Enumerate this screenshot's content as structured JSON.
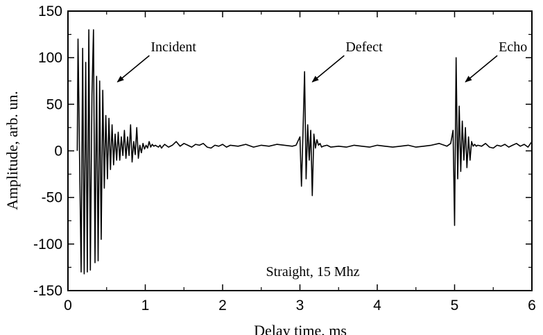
{
  "chart_data": {
    "type": "line",
    "title": "",
    "xlabel": "Delay time, ms",
    "ylabel": "Amplitude, arb. un.",
    "xlim": [
      0,
      6
    ],
    "ylim": [
      -150,
      150
    ],
    "xticks": [
      0,
      1,
      2,
      3,
      4,
      5,
      6
    ],
    "yticks": [
      150,
      100,
      50,
      0,
      -50,
      -100,
      -150
    ],
    "grid": false,
    "legend": "none",
    "inset_text": "Straight, 15 Mhz",
    "annotations": [
      {
        "text": "Incident",
        "target": [
          0.64,
          74
        ]
      },
      {
        "text": "Defect",
        "target": [
          3.16,
          74
        ]
      },
      {
        "text": "Echo",
        "target": [
          5.14,
          74
        ]
      }
    ],
    "series": [
      {
        "color": "#000000",
        "x": [
          0.12,
          0.13,
          0.15,
          0.17,
          0.19,
          0.21,
          0.23,
          0.25,
          0.27,
          0.29,
          0.31,
          0.33,
          0.35,
          0.37,
          0.39,
          0.41,
          0.43,
          0.45,
          0.47,
          0.49,
          0.51,
          0.53,
          0.55,
          0.57,
          0.59,
          0.61,
          0.63,
          0.65,
          0.67,
          0.69,
          0.71,
          0.73,
          0.75,
          0.77,
          0.79,
          0.81,
          0.83,
          0.85,
          0.87,
          0.89,
          0.91,
          0.93,
          0.95,
          0.97,
          0.99,
          1.01,
          1.03,
          1.05,
          1.07,
          1.09,
          1.11,
          1.13,
          1.15,
          1.17,
          1.19,
          1.21,
          1.23,
          1.25,
          1.3,
          1.35,
          1.4,
          1.45,
          1.5,
          1.55,
          1.6,
          1.65,
          1.7,
          1.75,
          1.8,
          1.85,
          1.9,
          1.95,
          2.0,
          2.05,
          2.1,
          2.2,
          2.3,
          2.4,
          2.5,
          2.6,
          2.7,
          2.8,
          2.9,
          2.95,
          3.0,
          3.02,
          3.04,
          3.06,
          3.08,
          3.1,
          3.12,
          3.14,
          3.16,
          3.18,
          3.2,
          3.22,
          3.24,
          3.26,
          3.28,
          3.3,
          3.35,
          3.4,
          3.5,
          3.6,
          3.7,
          3.8,
          3.9,
          4.0,
          4.1,
          4.2,
          4.3,
          4.4,
          4.5,
          4.6,
          4.7,
          4.8,
          4.9,
          4.95,
          4.98,
          5.0,
          5.02,
          5.04,
          5.06,
          5.08,
          5.1,
          5.12,
          5.14,
          5.16,
          5.18,
          5.2,
          5.22,
          5.24,
          5.26,
          5.28,
          5.3,
          5.35,
          5.4,
          5.45,
          5.5,
          5.55,
          5.6,
          5.65,
          5.7,
          5.75,
          5.8,
          5.85,
          5.9,
          5.95,
          6.0
        ],
        "y": [
          0,
          120,
          -5,
          -130,
          110,
          -132,
          95,
          -130,
          130,
          -128,
          60,
          130,
          -120,
          80,
          -118,
          75,
          -95,
          65,
          -40,
          38,
          -30,
          35,
          -20,
          28,
          -15,
          18,
          -10,
          20,
          -10,
          15,
          -5,
          22,
          -8,
          15,
          -5,
          28,
          -12,
          10,
          -4,
          25,
          -8,
          6,
          -2,
          8,
          2,
          6,
          3,
          10,
          4,
          7,
          5,
          6,
          5,
          4,
          6,
          3,
          5,
          7,
          4,
          6,
          10,
          5,
          8,
          6,
          4,
          7,
          6,
          8,
          4,
          3,
          6,
          5,
          7,
          4,
          6,
          5,
          7,
          4,
          6,
          5,
          7,
          6,
          5,
          6,
          15,
          -38,
          22,
          85,
          -30,
          28,
          -10,
          22,
          -48,
          18,
          3,
          12,
          6,
          8,
          4,
          5,
          6,
          4,
          5,
          4,
          6,
          5,
          4,
          6,
          5,
          4,
          5,
          6,
          4,
          5,
          6,
          8,
          5,
          8,
          22,
          -80,
          100,
          -30,
          48,
          -22,
          32,
          -10,
          25,
          -18,
          15,
          -10,
          10,
          5,
          7,
          5,
          6,
          5,
          8,
          4,
          3,
          6,
          5,
          7,
          4,
          6,
          8,
          5,
          7,
          4,
          10
        ]
      }
    ]
  }
}
